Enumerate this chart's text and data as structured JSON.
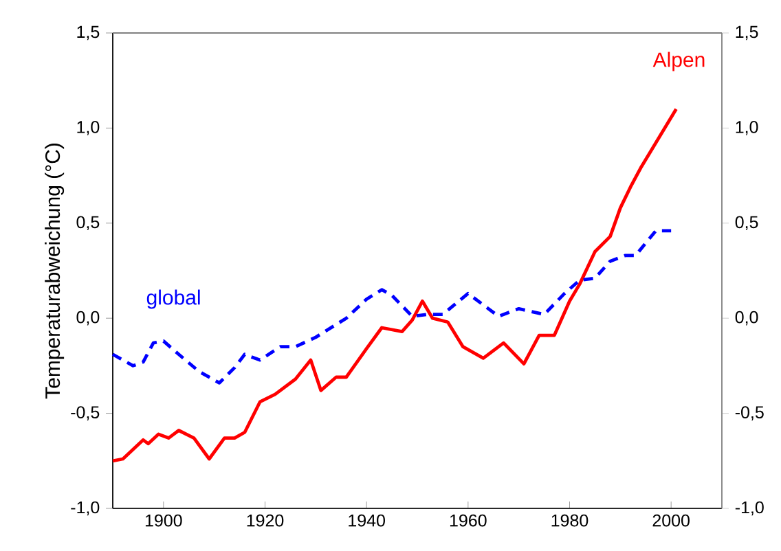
{
  "chart_data": {
    "type": "line",
    "ylabel": "Temperaturabweichung (°C)",
    "xlim": [
      1890,
      2010
    ],
    "xticks": [
      1900,
      1920,
      1940,
      1960,
      1980,
      2000
    ],
    "ylim": [
      -1.0,
      1.5
    ],
    "yticks": [
      {
        "value": -1.0,
        "label": "-1,0"
      },
      {
        "value": -0.5,
        "label": "-0,5"
      },
      {
        "value": 0.0,
        "label": "0,0"
      },
      {
        "value": 0.5,
        "label": "0,5"
      },
      {
        "value": 1.0,
        "label": "1,0"
      },
      {
        "value": 1.5,
        "label": "1,5"
      }
    ],
    "y2lim": [
      -1.0,
      1.5
    ],
    "y2ticks": [
      {
        "value": -1.0,
        "label": "-1,0"
      },
      {
        "value": -0.5,
        "label": "-0,5"
      },
      {
        "value": 0.0,
        "label": "0,0"
      },
      {
        "value": 0.5,
        "label": "0,5"
      },
      {
        "value": 1.0,
        "label": "1,0"
      },
      {
        "value": 1.5,
        "label": "1,5"
      }
    ],
    "grid": false,
    "legend": false,
    "series": [
      {
        "name": "Alpen",
        "color": "#ff0000",
        "line_style": "solid",
        "x": [
          1890,
          1892,
          1896,
          1897,
          1899,
          1901,
          1903,
          1906,
          1909,
          1912,
          1914,
          1916,
          1919,
          1922,
          1926,
          1929,
          1931,
          1934,
          1936,
          1940,
          1943,
          1947,
          1949,
          1951,
          1953,
          1956,
          1959,
          1963,
          1967,
          1971,
          1974,
          1977,
          1980,
          1982,
          1985,
          1988,
          1990,
          1992,
          1994,
          2001
        ],
        "values": [
          -0.75,
          -0.74,
          -0.64,
          -0.66,
          -0.61,
          -0.63,
          -0.59,
          -0.63,
          -0.74,
          -0.63,
          -0.63,
          -0.6,
          -0.44,
          -0.4,
          -0.32,
          -0.22,
          -0.38,
          -0.31,
          -0.31,
          -0.16,
          -0.05,
          -0.07,
          -0.01,
          0.09,
          0.0,
          -0.02,
          -0.15,
          -0.21,
          -0.13,
          -0.24,
          -0.09,
          -0.09,
          0.09,
          0.18,
          0.35,
          0.43,
          0.58,
          0.69,
          0.79,
          1.1
        ]
      },
      {
        "name": "global",
        "color": "#0000ff",
        "line_style": "dashed",
        "x": [
          1890,
          1894,
          1896,
          1898,
          1900,
          1903,
          1907,
          1911,
          1914,
          1916,
          1919,
          1923,
          1926,
          1930,
          1936,
          1940,
          1943,
          1945,
          1949,
          1952,
          1955,
          1960,
          1966,
          1970,
          1975,
          1979,
          1982,
          1985,
          1988,
          1991,
          1993,
          1997,
          2000
        ],
        "values": [
          -0.19,
          -0.25,
          -0.23,
          -0.13,
          -0.12,
          -0.19,
          -0.28,
          -0.34,
          -0.26,
          -0.19,
          -0.22,
          -0.15,
          -0.15,
          -0.1,
          0.0,
          0.1,
          0.15,
          0.12,
          0.01,
          0.02,
          0.02,
          0.13,
          0.01,
          0.05,
          0.02,
          0.13,
          0.2,
          0.21,
          0.3,
          0.33,
          0.33,
          0.46,
          0.46
        ]
      }
    ]
  }
}
